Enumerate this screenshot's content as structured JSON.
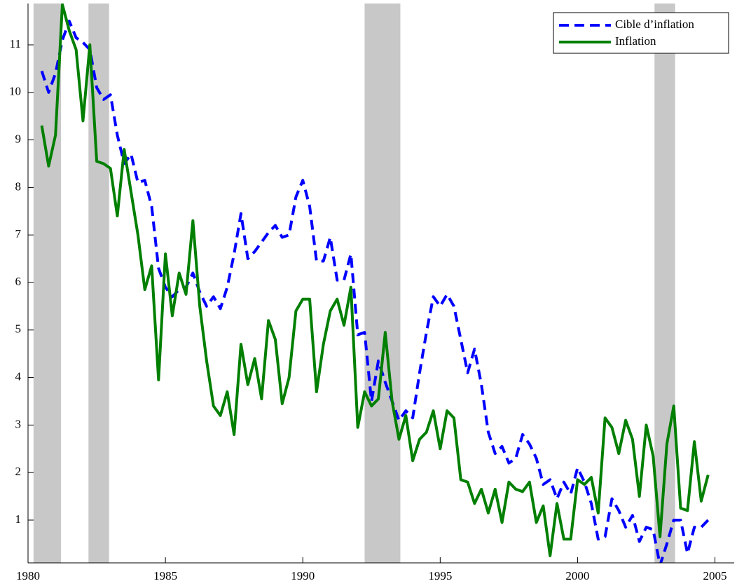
{
  "chart_data": {
    "type": "line",
    "x": [
      1980.5,
      1980.75,
      1981,
      1981.25,
      1981.5,
      1981.75,
      1982,
      1982.25,
      1982.5,
      1982.75,
      1983,
      1983.25,
      1983.5,
      1983.75,
      1984,
      1984.25,
      1984.5,
      1984.75,
      1985,
      1985.25,
      1985.5,
      1985.75,
      1986,
      1986.25,
      1986.5,
      1986.75,
      1987,
      1987.25,
      1987.5,
      1987.75,
      1988,
      1988.25,
      1988.5,
      1988.75,
      1989,
      1989.25,
      1989.5,
      1989.75,
      1990,
      1990.25,
      1990.5,
      1990.75,
      1991,
      1991.25,
      1991.5,
      1991.75,
      1992,
      1992.25,
      1992.5,
      1992.75,
      1993,
      1993.25,
      1993.5,
      1993.75,
      1994,
      1994.25,
      1994.5,
      1994.75,
      1995,
      1995.25,
      1995.5,
      1995.75,
      1996,
      1996.25,
      1996.5,
      1996.75,
      1997,
      1997.25,
      1997.5,
      1997.75,
      1998,
      1998.25,
      1998.5,
      1998.75,
      1999,
      1999.25,
      1999.5,
      1999.75,
      2000,
      2000.25,
      2000.5,
      2000.75,
      2001,
      2001.25,
      2001.5,
      2001.75,
      2002,
      2002.25,
      2002.5,
      2002.75,
      2003,
      2003.25,
      2003.5,
      2003.75,
      2004,
      2004.25,
      2004.5,
      2004.75
    ],
    "series": [
      {
        "name": "Cible d’inflation",
        "color": "#0000ff",
        "dashed": true,
        "values": [
          10.45,
          10.0,
          10.4,
          11.1,
          11.5,
          11.15,
          11.05,
          10.9,
          10.1,
          9.85,
          9.95,
          9.1,
          8.5,
          8.7,
          8.1,
          8.15,
          7.6,
          6.3,
          5.9,
          5.7,
          5.85,
          5.9,
          6.2,
          5.8,
          5.5,
          5.7,
          5.45,
          5.9,
          6.6,
          7.45,
          6.5,
          6.65,
          6.85,
          7.05,
          7.2,
          6.95,
          7.0,
          7.8,
          8.15,
          7.6,
          6.45,
          6.45,
          6.95,
          6.05,
          6.05,
          6.6,
          4.9,
          4.95,
          3.5,
          4.35,
          3.9,
          3.5,
          3.1,
          3.3,
          3.15,
          4.1,
          4.95,
          5.7,
          5.5,
          5.75,
          5.5,
          4.8,
          4.1,
          4.6,
          3.85,
          2.85,
          2.4,
          2.55,
          2.2,
          2.3,
          2.8,
          2.6,
          2.3,
          1.75,
          1.85,
          1.45,
          1.8,
          1.55,
          2.1,
          1.8,
          1.35,
          0.6,
          0.65,
          1.45,
          1.2,
          0.85,
          1.1,
          0.55,
          0.85,
          0.8,
          0.05,
          0.5,
          1.0,
          1.0,
          0.3,
          0.85,
          0.85,
          1.0
        ]
      },
      {
        "name": "Inflation",
        "color": "#007f00",
        "dashed": false,
        "values": [
          9.3,
          8.45,
          9.1,
          11.85,
          11.3,
          10.9,
          9.4,
          11.0,
          8.55,
          8.5,
          8.4,
          7.4,
          8.8,
          7.9,
          7.0,
          5.85,
          6.35,
          3.95,
          6.6,
          5.3,
          6.2,
          5.75,
          7.3,
          5.5,
          4.35,
          3.4,
          3.2,
          3.7,
          2.8,
          4.7,
          3.85,
          4.4,
          3.55,
          5.2,
          4.8,
          3.45,
          4.0,
          5.4,
          5.65,
          5.65,
          3.7,
          4.7,
          5.4,
          5.65,
          5.1,
          5.9,
          2.95,
          3.7,
          3.4,
          3.55,
          4.95,
          3.5,
          2.7,
          3.2,
          2.25,
          2.7,
          2.85,
          3.3,
          2.5,
          3.3,
          3.15,
          1.85,
          1.8,
          1.35,
          1.65,
          1.15,
          1.65,
          0.95,
          1.8,
          1.65,
          1.6,
          1.8,
          0.95,
          1.3,
          0.25,
          1.35,
          0.6,
          0.6,
          1.85,
          1.75,
          1.9,
          1.15,
          3.15,
          2.95,
          2.4,
          3.1,
          2.7,
          1.5,
          3.0,
          2.35,
          0.65,
          2.6,
          3.4,
          1.25,
          1.2,
          2.65,
          1.4,
          1.95
        ]
      }
    ],
    "shaded_regions": [
      [
        1980.2,
        1981.2
      ],
      [
        1982.2,
        1982.95
      ],
      [
        1992.25,
        1993.55
      ],
      [
        2002.8,
        2003.55
      ]
    ],
    "shade_color": "#c8c8c8",
    "xlim": [
      1980,
      2005.7
    ],
    "xticks": [
      1980,
      1985,
      1990,
      1995,
      2000,
      2005
    ],
    "ylim": [
      0.1,
      11.87
    ],
    "yticks": [
      1,
      2,
      3,
      4,
      5,
      6,
      7,
      8,
      9,
      10,
      11
    ],
    "legend": "upper right"
  }
}
